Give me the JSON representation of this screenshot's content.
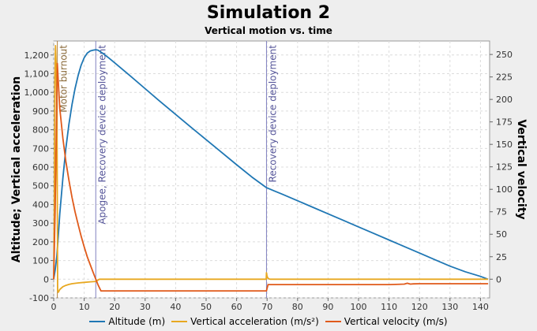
{
  "chart_data": {
    "type": "line",
    "title": "Simulation 2",
    "subtitle": "Vertical motion vs. time",
    "ylabel_left": "Altitude; Vertical acceleration",
    "ylabel_right": "Vertical velocity",
    "xlim": [
      0,
      143
    ],
    "ylim_left": [
      -100,
      1275
    ],
    "ylim_right": [
      -20.8,
      265
    ],
    "x_ticks": [
      0,
      10,
      20,
      30,
      40,
      50,
      60,
      70,
      80,
      90,
      100,
      110,
      120,
      130,
      140
    ],
    "y_left_ticks": [
      -100,
      0,
      100,
      200,
      300,
      400,
      500,
      600,
      700,
      800,
      900,
      1000,
      1100,
      1200
    ],
    "y_left_tick_labels": [
      "-100",
      "0",
      "100",
      "200",
      "300",
      "400",
      "500",
      "600",
      "700",
      "800",
      "900",
      "1,000",
      "1,100",
      "1,200"
    ],
    "y_right_ticks": [
      0,
      25,
      50,
      75,
      100,
      125,
      150,
      175,
      200,
      225,
      250
    ],
    "grid": true,
    "legend_position": "bottom",
    "events": [
      {
        "x": 1.2,
        "label": "Motor burnout",
        "color": "#b08040"
      },
      {
        "x": 13.8,
        "label": "Apogee, Recovery device deployment",
        "color": "#8080c0"
      },
      {
        "x": 69.8,
        "label": "Recovery device deployment",
        "color": "#8080c0"
      }
    ],
    "series": [
      {
        "name": "Altitude (m)",
        "color": "#1f77b4",
        "axis": "left",
        "x": [
          0,
          0.5,
          1,
          1.5,
          2,
          3,
          4,
          5,
          6,
          7,
          8,
          9,
          10,
          11,
          12,
          13,
          13.8,
          14.5,
          16,
          18,
          20,
          25,
          30,
          35,
          40,
          45,
          50,
          55,
          60,
          65,
          69.8,
          72,
          75,
          80,
          85,
          90,
          95,
          100,
          105,
          110,
          115,
          120,
          125,
          130,
          135,
          140,
          142.5
        ],
        "y": [
          0,
          50,
          120,
          230,
          350,
          540,
          700,
          830,
          935,
          1020,
          1090,
          1145,
          1185,
          1210,
          1222,
          1226,
          1228,
          1226,
          1210,
          1185,
          1158,
          1090,
          1020,
          950,
          882,
          814,
          747,
          680,
          613,
          547,
          490,
          475,
          455,
          420,
          385,
          350,
          315,
          280,
          245,
          210,
          175,
          140,
          105,
          70,
          40,
          15,
          0
        ]
      },
      {
        "name": "Vertical acceleration (m/s²)",
        "color": "#e8a820",
        "axis": "left",
        "x": [
          0,
          0.2,
          0.4,
          0.6,
          0.8,
          1.0,
          1.2,
          1.3,
          1.5,
          2,
          3,
          4,
          5,
          6,
          8,
          10,
          12,
          13.8,
          15,
          20,
          30,
          40,
          50,
          60,
          69.7,
          69.8,
          70.0,
          70.3,
          70.6,
          71,
          80,
          100,
          120,
          142.5
        ],
        "y": [
          0,
          400,
          1080,
          1250,
          1150,
          900,
          400,
          -60,
          -70,
          -55,
          -40,
          -33,
          -28,
          -24,
          -20,
          -17,
          -14,
          -12,
          0,
          0,
          0,
          0,
          0,
          0,
          0,
          35,
          15,
          5,
          2,
          0,
          0,
          0,
          0,
          0
        ]
      },
      {
        "name": "Vertical velocity (m/s)",
        "color": "#e05a1a",
        "axis": "right",
        "x": [
          0,
          0.5,
          1,
          1.2,
          1.5,
          2,
          3,
          4,
          5,
          6,
          7,
          8,
          9,
          10,
          11,
          12,
          13,
          13.8,
          14.5,
          15.5,
          20,
          30,
          40,
          50,
          60,
          69.8,
          70.3,
          80,
          90,
          100,
          110,
          115,
          116,
          117,
          118,
          120,
          130,
          142.5
        ],
        "y": [
          0,
          80,
          200,
          240,
          220,
          190,
          157,
          131,
          110,
          91,
          75,
          61,
          48,
          36,
          25,
          16,
          7,
          0,
          -6,
          -13,
          -13,
          -13,
          -13,
          -13,
          -13,
          -13,
          -6,
          -6,
          -6,
          -6,
          -6,
          -5.5,
          -4.5,
          -5.5,
          -5.2,
          -5,
          -5,
          -5
        ]
      }
    ]
  }
}
